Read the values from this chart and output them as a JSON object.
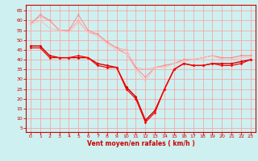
{
  "x": [
    0,
    1,
    2,
    3,
    4,
    5,
    6,
    7,
    8,
    9,
    10,
    11,
    12,
    13,
    14,
    15,
    16,
    17,
    18,
    19,
    20,
    21,
    22,
    23
  ],
  "line1": [
    59,
    62,
    60,
    55,
    55,
    60,
    54,
    53,
    49,
    46,
    45,
    36,
    35,
    36,
    37,
    38,
    40,
    40,
    41,
    42,
    41,
    41,
    42,
    42
  ],
  "line2": [
    58,
    63,
    60,
    55,
    55,
    63,
    55,
    53,
    49,
    46,
    43,
    36,
    31,
    36,
    37,
    38,
    40,
    40,
    41,
    42,
    41,
    41,
    42,
    42
  ],
  "line3": [
    58,
    60,
    56,
    55,
    54,
    59,
    54,
    52,
    48,
    45,
    43,
    35,
    29,
    36,
    36,
    38,
    39,
    40,
    41,
    42,
    40,
    40,
    41,
    41
  ],
  "line4": [
    47,
    47,
    42,
    41,
    41,
    41,
    41,
    38,
    37,
    36,
    26,
    21,
    9,
    14,
    25,
    35,
    38,
    37,
    37,
    38,
    38,
    38,
    39,
    40
  ],
  "line5": [
    46,
    46,
    41,
    41,
    41,
    42,
    41,
    37,
    36,
    36,
    25,
    20,
    8,
    13,
    25,
    35,
    38,
    37,
    37,
    38,
    37,
    37,
    38,
    40
  ],
  "background_color": "#cff0f0",
  "grid_color": "#ff9999",
  "line1_color": "#ffaaaa",
  "line2_color": "#ff8888",
  "line3_color": "#ffbbbb",
  "line4_color": "#cc0000",
  "line5_color": "#ff0000",
  "xlabel": "Vent moyen/en rafales ( km/h )",
  "ylabel_ticks": [
    5,
    10,
    15,
    20,
    25,
    30,
    35,
    40,
    45,
    50,
    55,
    60,
    65
  ],
  "xlim": [
    -0.5,
    23.5
  ],
  "ylim": [
    3,
    68
  ]
}
